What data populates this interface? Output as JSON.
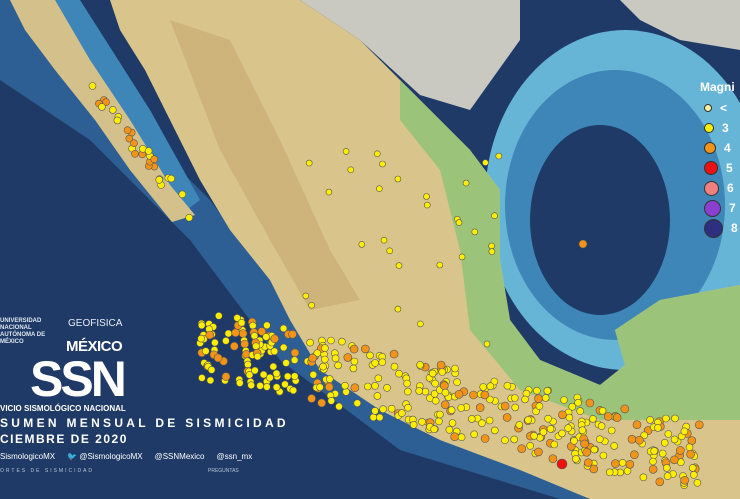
{
  "branding": {
    "unam": "UNIVERSIDAD NACIONAL AUTÓNOMA DE MÉXICO",
    "geofisica": "GEOFISICA",
    "mexico": "MÉXICO",
    "ssn": "SSN",
    "service": "VICIO SISMOLÓGICO NACIONAL"
  },
  "title": "SUMEN MENSUAL DE SISMICIDAD",
  "date": "CIEMBRE DE 2020",
  "social": [
    "SismologicoMX",
    "@SismologicoMX",
    "@SSNMexico",
    "@ssn_mx"
  ],
  "footer_left": "ORTES DE SISMICIDAD",
  "footer_right": "PREGUNTAS",
  "legend": {
    "title": "Magni",
    "items": [
      {
        "label": "<",
        "color": "#f4f0a0"
      },
      {
        "label": "3",
        "color": "#ffee00"
      },
      {
        "label": "4",
        "color": "#f29418"
      },
      {
        "label": "5",
        "color": "#ee1111"
      },
      {
        "label": "6",
        "color": "#f08080"
      },
      {
        "label": "7",
        "color": "#8a3fd0"
      },
      {
        "label": "8",
        "color": "#2f2f80"
      }
    ]
  },
  "colors": {
    "ocean_deep": "#1f3a66",
    "ocean_shelf": "#3f86b8",
    "land": "#d9c58c",
    "land_green": "#9cc37a",
    "us_land": "#c9c9c2"
  }
}
